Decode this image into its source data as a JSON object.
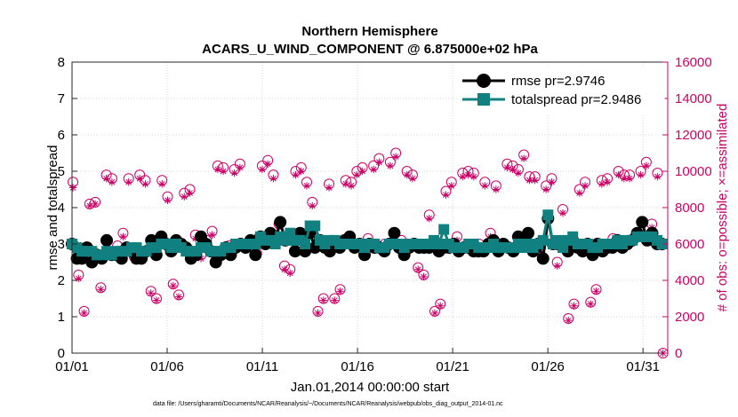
{
  "chart_data": {
    "type": "line",
    "title": [
      "Northern Hemisphere",
      "ACARS_U_WIND_COMPONENT @ 6.875000e+02 hPa"
    ],
    "xlabel": "Jan.01,2014 00:00:00 start",
    "ylabel": "rmse and totalspread",
    "y2label": "# of obs: o=possible; ×=assimilated",
    "xlim": [
      0,
      31.3
    ],
    "ylim": [
      0,
      8
    ],
    "y2lim": [
      0,
      16000
    ],
    "x_ticks": [
      0,
      5,
      10,
      15,
      20,
      25,
      30
    ],
    "x_tick_labels": [
      "01/01",
      "01/06",
      "01/11",
      "01/16",
      "01/21",
      "01/26",
      "01/31"
    ],
    "y_ticks": [
      0,
      1,
      2,
      3,
      4,
      5,
      6,
      7,
      8
    ],
    "y_tick_labels": [
      "0",
      "1",
      "2",
      "3",
      "4",
      "5",
      "6",
      "7",
      "8"
    ],
    "y2_ticks": [
      0,
      2000,
      4000,
      6000,
      8000,
      10000,
      12000,
      14000,
      16000
    ],
    "y2_tick_labels": [
      "0",
      "2000",
      "4000",
      "6000",
      "8000",
      "10000",
      "12000",
      "14000",
      "16000"
    ],
    "grid": true,
    "legend_position": "top-right",
    "series": [
      {
        "name": "rmse pr=2.9746",
        "color": "#000000",
        "marker": "circle",
        "axis": "left",
        "values": [
          3.0,
          2.6,
          2.6,
          2.9,
          2.5,
          2.7,
          2.6,
          3.1,
          2.7,
          2.7,
          2.6,
          2.9,
          2.8,
          2.6,
          2.6,
          2.8,
          3.1,
          2.7,
          3.2,
          3.0,
          2.8,
          3.1,
          3.0,
          2.9,
          2.6,
          2.7,
          3.2,
          3.0,
          2.8,
          2.5,
          2.7,
          2.9,
          2.7,
          2.9,
          3.0,
          2.9,
          3.1,
          2.7,
          3.2,
          3.0,
          3.3,
          3.1,
          3.6,
          3.1,
          3.2,
          2.8,
          3.3,
          2.8,
          3.3,
          2.9,
          3.1,
          2.9,
          2.8,
          3.0,
          2.9,
          3.1,
          3.2,
          2.9,
          3.0,
          2.7,
          3.0,
          2.9,
          2.9,
          2.8,
          3.0,
          3.3,
          2.9,
          2.7,
          2.9,
          3.0,
          2.9,
          2.9,
          2.9,
          3.0,
          2.8,
          2.9,
          2.9,
          3.0,
          2.8,
          2.9,
          2.9,
          2.8,
          2.8,
          2.8,
          3.0,
          3.1,
          2.8,
          3.0,
          2.9,
          2.8,
          3.2,
          3.0,
          3.3,
          2.8,
          3.0,
          2.6,
          3.7,
          3.0,
          3.0,
          3.0,
          2.8,
          3.1,
          2.9,
          2.8,
          3.0,
          2.7,
          3.0,
          2.8,
          2.9,
          2.9,
          3.1,
          2.9,
          3.0,
          3.1,
          3.3,
          3.6,
          3.1,
          3.3,
          3.0,
          3.0
        ]
      },
      {
        "name": "totalspread pr=2.9486",
        "color": "#118080",
        "marker": "square",
        "axis": "left",
        "values": [
          3.0,
          2.9,
          2.8,
          2.8,
          2.8,
          2.7,
          2.7,
          2.8,
          2.7,
          2.8,
          2.8,
          2.8,
          2.9,
          2.9,
          2.8,
          2.8,
          2.9,
          2.9,
          3.0,
          3.0,
          2.9,
          3.0,
          2.9,
          2.8,
          2.8,
          2.8,
          2.9,
          2.9,
          2.8,
          2.8,
          2.8,
          2.9,
          2.9,
          3.0,
          3.0,
          3.0,
          3.0,
          3.0,
          3.2,
          3.1,
          3.1,
          3.0,
          3.2,
          3.1,
          3.3,
          3.1,
          3.1,
          3.0,
          3.5,
          3.5,
          3.1,
          3.0,
          3.1,
          3.1,
          3.0,
          3.0,
          3.0,
          3.0,
          3.0,
          2.9,
          3.0,
          3.0,
          2.9,
          2.9,
          3.0,
          3.0,
          3.0,
          2.9,
          3.0,
          3.0,
          3.0,
          3.0,
          3.0,
          3.1,
          3.0,
          3.4,
          3.0,
          2.9,
          2.9,
          2.9,
          3.0,
          3.0,
          2.9,
          2.9,
          2.9,
          3.0,
          2.9,
          2.9,
          2.9,
          2.9,
          3.0,
          2.9,
          3.0,
          2.9,
          3.0,
          3.1,
          3.8,
          3.0,
          3.1,
          2.9,
          3.1,
          3.2,
          3.0,
          3.0,
          3.0,
          2.9,
          2.9,
          3.0,
          3.0,
          3.0,
          3.1,
          3.0,
          3.1,
          3.1,
          3.2,
          3.2,
          3.2,
          3.2,
          3.1,
          3.0
        ]
      },
      {
        "name": "possible",
        "color": "#cc0066",
        "marker": "circle-open",
        "axis": "right",
        "values": [
          9400,
          4300,
          2300,
          8200,
          8300,
          3600,
          9800,
          9600,
          5900,
          6600,
          9600,
          5300,
          9800,
          9500,
          3400,
          3000,
          9500,
          8600,
          3800,
          3200,
          8800,
          9000,
          6500,
          5400,
          6200,
          6700,
          10300,
          10200,
          5900,
          10100,
          10400,
          6000,
          6100,
          5500,
          10300,
          10600,
          9800,
          7100,
          4800,
          4600,
          10000,
          10200,
          9400,
          8300,
          2300,
          3000,
          9300,
          3000,
          3500,
          9500,
          9400,
          10000,
          10200,
          6300,
          10300,
          10700,
          6000,
          10500,
          11000,
          6200,
          10000,
          9800,
          4700,
          4300,
          7600,
          2300,
          2700,
          8900,
          9400,
          6400,
          9900,
          10000,
          9900,
          6000,
          9400,
          6600,
          9200,
          5900,
          10400,
          10300,
          10100,
          10900,
          9700,
          9700,
          5800,
          9200,
          9600,
          5000,
          7900,
          1900,
          2700,
          9000,
          9400,
          2800,
          3500,
          9500,
          9600,
          6300,
          10000,
          9800,
          9800,
          6400,
          10000,
          10500,
          7100,
          9900,
          0
        ]
      },
      {
        "name": "assimilated",
        "color": "#cc0066",
        "marker": "x",
        "axis": "right",
        "values": [
          9100,
          4100,
          2200,
          8100,
          8200,
          3500,
          9600,
          9400,
          5700,
          6400,
          9400,
          5100,
          9600,
          9300,
          3300,
          2900,
          9300,
          8400,
          3700,
          3100,
          8600,
          8800,
          6300,
          5200,
          6000,
          6500,
          10100,
          10000,
          5700,
          9900,
          10200,
          5800,
          5900,
          5300,
          10100,
          10400,
          9600,
          6900,
          4600,
          4400,
          9800,
          10000,
          9200,
          8100,
          2200,
          2900,
          9100,
          2900,
          3400,
          9300,
          9200,
          9800,
          10000,
          6100,
          10100,
          10500,
          5800,
          10300,
          10800,
          6000,
          9800,
          9600,
          4600,
          4200,
          7400,
          2200,
          2600,
          8700,
          9200,
          6200,
          9700,
          9800,
          9700,
          5800,
          9200,
          6400,
          9000,
          5700,
          10200,
          10100,
          9900,
          10700,
          9500,
          9500,
          5600,
          9000,
          9400,
          4800,
          7700,
          1800,
          2600,
          8800,
          9200,
          2700,
          3400,
          9300,
          9400,
          6100,
          9800,
          9600,
          9600,
          6200,
          9800,
          10300,
          6900,
          9700,
          0
        ]
      }
    ]
  },
  "footer": "data file: /Users/gharamti/Documents/NCAR/Reanalysis/~/Documents/NCAR/Reanalysis/webpub/obs_diag_output_2014-01.nc"
}
